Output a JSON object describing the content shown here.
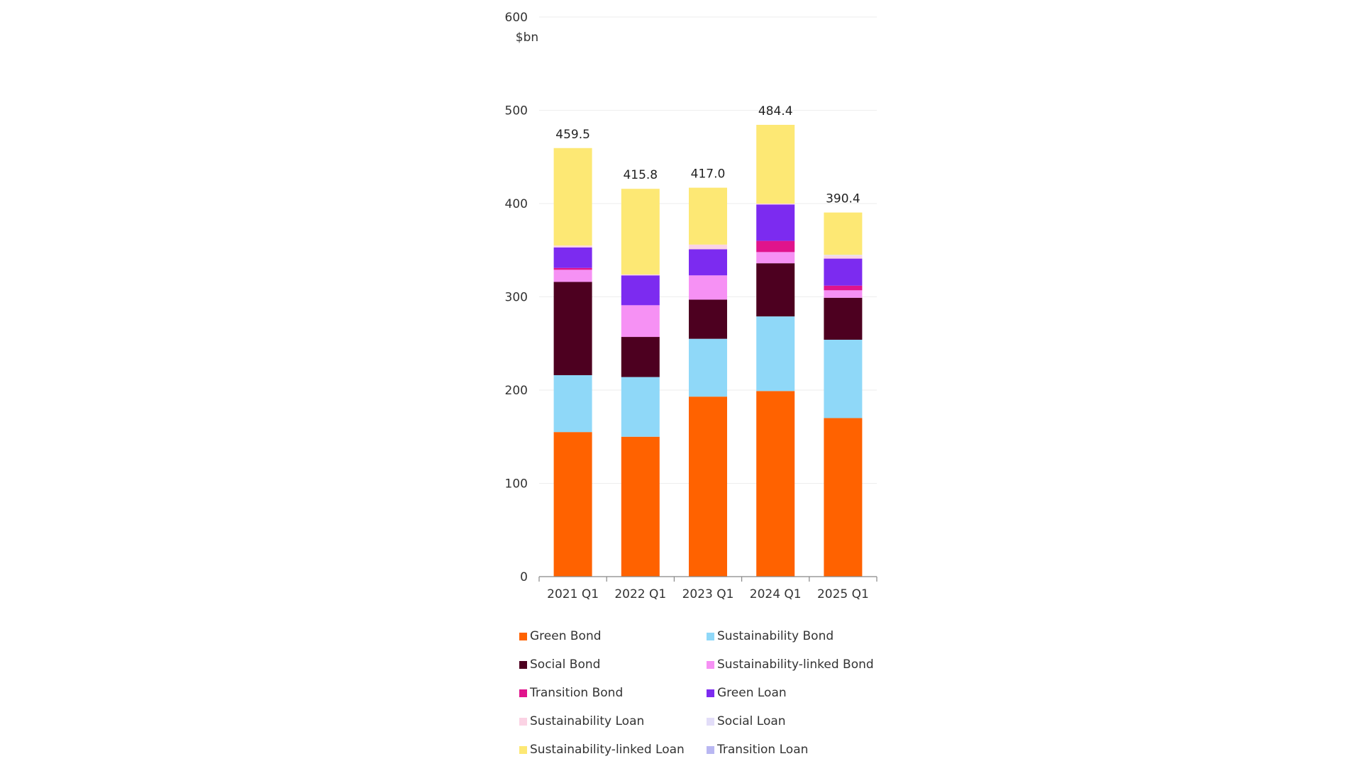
{
  "chart_data": {
    "type": "bar",
    "stacked": true,
    "title": "",
    "xlabel": "",
    "ylabel": "$bn",
    "ylim": [
      0,
      600
    ],
    "yticks": [
      0,
      100,
      200,
      300,
      400,
      500,
      600
    ],
    "grid": true,
    "legend_position": "bottom",
    "categories": [
      "2021 Q1",
      "2022 Q1",
      "2023 Q1",
      "2024 Q1",
      "2025 Q1"
    ],
    "totals": [
      "459.5",
      "415.8",
      "417.0",
      "484.4",
      "390.4"
    ],
    "series": [
      {
        "name": "Green Bond",
        "color": "#FF6200",
        "values": [
          155,
          150,
          193,
          199,
          170
        ]
      },
      {
        "name": "Sustainability Bond",
        "color": "#8FD8F8",
        "values": [
          61,
          64,
          62,
          80,
          84
        ]
      },
      {
        "name": "Social Bond",
        "color": "#4D0020",
        "values": [
          100,
          43,
          42,
          57,
          45
        ]
      },
      {
        "name": "Sustainability-linked Bond",
        "color": "#F691F4",
        "values": [
          13,
          34,
          26,
          12,
          8
        ]
      },
      {
        "name": "Transition Bond",
        "color": "#E0148C",
        "values": [
          2,
          0,
          0,
          12,
          5
        ]
      },
      {
        "name": "Green Loan",
        "color": "#7C2BF0",
        "values": [
          22,
          32,
          28,
          39,
          29
        ]
      },
      {
        "name": "Sustainability Loan",
        "color": "#FBD3E4",
        "values": [
          2,
          1,
          5,
          1,
          3
        ]
      },
      {
        "name": "Social Loan",
        "color": "#E2DDF8",
        "values": [
          0,
          0,
          0,
          0,
          1
        ]
      },
      {
        "name": "Sustainability-linked Loan",
        "color": "#FDE874",
        "values": [
          104.5,
          91.8,
          61,
          84.4,
          45.4
        ]
      },
      {
        "name": "Transition Loan",
        "color": "#B9B7F2",
        "values": [
          0,
          0,
          0,
          0,
          0
        ]
      }
    ]
  }
}
